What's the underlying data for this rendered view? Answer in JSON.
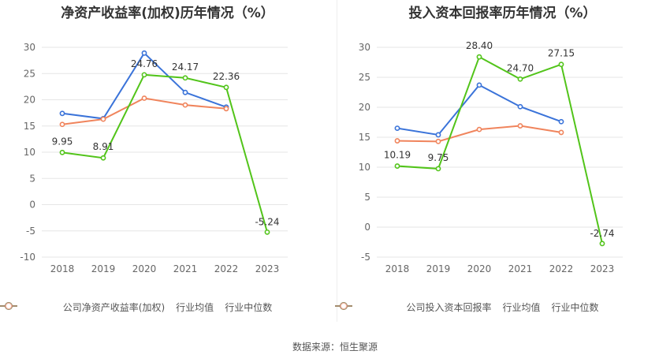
{
  "footer": {
    "source_label": "数据来源：恒生聚源"
  },
  "chart_data": [
    {
      "type": "line",
      "title": "净资产收益率(加权)历年情况（%）",
      "categories": [
        "2018",
        "2019",
        "2020",
        "2021",
        "2022",
        "2023"
      ],
      "ylim": [
        -10,
        30
      ],
      "yticks": [
        -10,
        -5,
        0,
        5,
        10,
        15,
        20,
        25,
        30
      ],
      "grid": true,
      "legend_position": "bottom",
      "series": [
        {
          "name": "公司净资产收益率(加权)",
          "color": "#52c41a",
          "values": [
            9.95,
            8.91,
            24.76,
            24.17,
            22.36,
            -5.24
          ],
          "labels": [
            "9.95",
            "8.91",
            "24.76",
            "24.17",
            "22.36",
            "-5.24"
          ]
        },
        {
          "name": "行业均值",
          "color": "#3a73d9",
          "values": [
            17.4,
            16.4,
            28.9,
            21.4,
            18.6,
            null
          ]
        },
        {
          "name": "行业中位数",
          "color": "#f0845c",
          "values": [
            15.3,
            16.3,
            20.3,
            19.0,
            18.3,
            null
          ]
        }
      ]
    },
    {
      "type": "line",
      "title": "投入资本回报率历年情况（%）",
      "categories": [
        "2018",
        "2019",
        "2020",
        "2021",
        "2022",
        "2023"
      ],
      "ylim": [
        -5,
        30
      ],
      "yticks": [
        -5,
        0,
        5,
        10,
        15,
        20,
        25,
        30
      ],
      "grid": true,
      "legend_position": "bottom",
      "series": [
        {
          "name": "公司投入资本回报率",
          "color": "#52c41a",
          "values": [
            10.19,
            9.75,
            28.4,
            24.7,
            27.15,
            -2.74
          ],
          "labels": [
            "10.19",
            "9.75",
            "28.40",
            "24.70",
            "27.15",
            "-2.74"
          ]
        },
        {
          "name": "行业均值",
          "color": "#3a73d9",
          "values": [
            16.5,
            15.4,
            23.7,
            20.1,
            17.6,
            null
          ]
        },
        {
          "name": "行业中位数",
          "color": "#f0845c",
          "values": [
            14.4,
            14.3,
            16.3,
            16.9,
            15.8,
            null
          ]
        }
      ]
    }
  ]
}
